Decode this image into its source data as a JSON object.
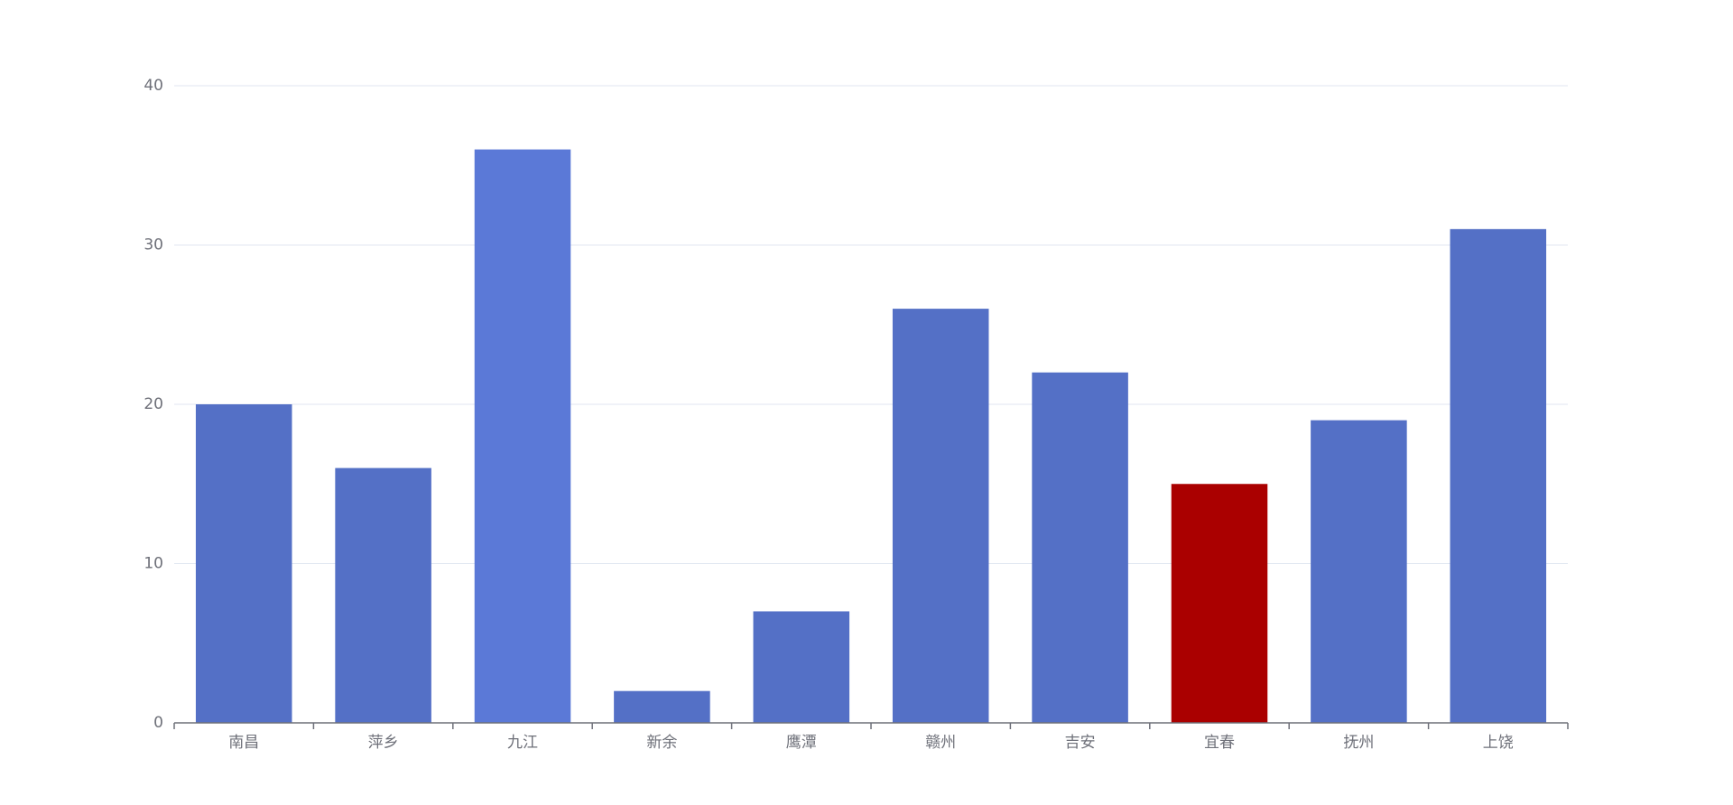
{
  "chart_data": {
    "type": "bar",
    "categories": [
      "南昌",
      "萍乡",
      "九江",
      "新余",
      "鹰潭",
      "赣州",
      "吉安",
      "宜春",
      "抚州",
      "上饶"
    ],
    "values": [
      20,
      16,
      36,
      2,
      7,
      26,
      22,
      15,
      19,
      31
    ],
    "colors": [
      "#5470c6",
      "#5470c6",
      "#5b79d7",
      "#5470c6",
      "#5470c6",
      "#5470c6",
      "#5470c6",
      "#aa0000",
      "#5470c6",
      "#5470c6"
    ],
    "ylim": [
      0,
      40
    ],
    "yticks": [
      0,
      10,
      20,
      30,
      40
    ],
    "grid": true
  }
}
